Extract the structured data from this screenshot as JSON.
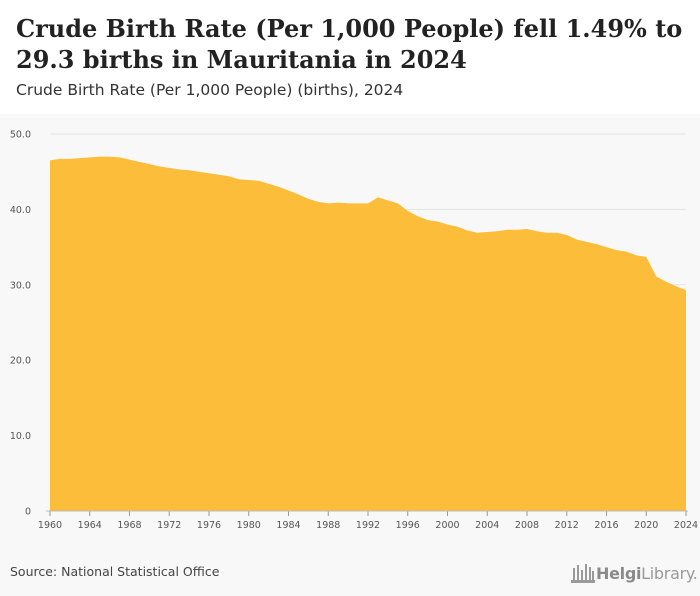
{
  "header": {
    "title": "Crude Birth Rate (Per 1,000 People) fell 1.49% to 29.3 births in Mauritania in 2024",
    "subtitle": "Crude Birth Rate (Per 1,000 People) (births), 2024"
  },
  "footer": {
    "source": "Source: National Statistical Office",
    "logo_name": "HelgiLibrary",
    "logo_bold": "Helgi",
    "logo_rest": "Library."
  },
  "colors": {
    "area_fill": "#FBBD3A",
    "background": "#F8F8F8",
    "grid": "#E4E4E4"
  },
  "chart_data": {
    "type": "area",
    "title": "Crude Birth Rate (Per 1,000 People) fell 1.49% to 29.3 births in Mauritania in 2024",
    "subtitle": "Crude Birth Rate (Per 1,000 People) (births), 2024",
    "xlabel": "",
    "ylabel": "",
    "grid": true,
    "legend": "none",
    "xlim": [
      1960,
      2024
    ],
    "ylim": [
      0,
      50
    ],
    "x_ticks": [
      1960,
      1964,
      1968,
      1972,
      1976,
      1980,
      1984,
      1988,
      1992,
      1996,
      2000,
      2004,
      2008,
      2012,
      2016,
      2020,
      2024
    ],
    "y_ticks": [
      {
        "value": 0,
        "label": "0"
      },
      {
        "value": 10,
        "label": "10.0"
      },
      {
        "value": 20,
        "label": "20.0"
      },
      {
        "value": 30,
        "label": "30.0"
      },
      {
        "value": 40,
        "label": "40.0"
      },
      {
        "value": 50,
        "label": "50.0"
      }
    ],
    "series": [
      {
        "x": [
          1960,
          1961,
          1962,
          1963,
          1964,
          1965,
          1966,
          1967,
          1968,
          1969,
          1970,
          1971,
          1972,
          1973,
          1974,
          1975,
          1976,
          1977,
          1978,
          1979,
          1980,
          1981,
          1982,
          1983,
          1984,
          1985,
          1986,
          1987,
          1988,
          1989,
          1990,
          1991,
          1992,
          1993,
          1994,
          1995,
          1996,
          1997,
          1998,
          1999,
          2000,
          2001,
          2002,
          2003,
          2004,
          2005,
          2006,
          2007,
          2008,
          2009,
          2010,
          2011,
          2012,
          2013,
          2014,
          2015,
          2016,
          2017,
          2018,
          2019,
          2020,
          2021,
          2022,
          2023,
          2024
        ],
        "values": [
          46.5,
          46.7,
          46.7,
          46.8,
          46.9,
          47.0,
          47.0,
          46.9,
          46.6,
          46.3,
          46.0,
          45.7,
          45.5,
          45.3,
          45.2,
          45.0,
          44.8,
          44.6,
          44.4,
          44.0,
          43.9,
          43.8,
          43.4,
          43.0,
          42.5,
          42.0,
          41.4,
          41.0,
          40.8,
          40.9,
          40.8,
          40.8,
          40.8,
          41.6,
          41.2,
          40.8,
          39.8,
          39.1,
          38.6,
          38.4,
          38.0,
          37.7,
          37.2,
          36.9,
          37.0,
          37.1,
          37.3,
          37.3,
          37.4,
          37.1,
          36.9,
          36.9,
          36.6,
          36.0,
          35.7,
          35.4,
          35.0,
          34.6,
          34.4,
          33.9,
          33.7,
          31.1,
          30.4,
          29.8,
          29.3
        ]
      }
    ]
  }
}
